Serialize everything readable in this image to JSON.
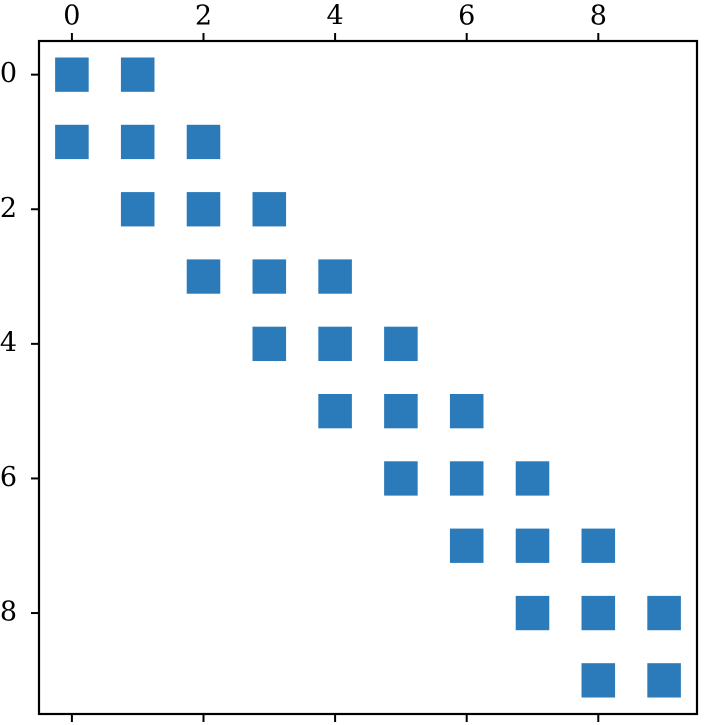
{
  "chart_data": {
    "type": "heatmap",
    "title": "",
    "xlabel": "",
    "ylabel": "",
    "n_rows": 10,
    "n_cols": 10,
    "xlim": [
      -0.5,
      9.5
    ],
    "ylim": [
      9.5,
      -0.5
    ],
    "x_ticks": [
      0,
      2,
      4,
      6,
      8
    ],
    "y_ticks": [
      0,
      2,
      4,
      6,
      8
    ],
    "x_tick_labels": [
      "0",
      "2",
      "4",
      "6",
      "8"
    ],
    "y_tick_labels": [
      "0",
      "2",
      "4",
      "6",
      "8"
    ],
    "x_axis_position": "top",
    "grid": false,
    "legend": "none",
    "marker_color": "#2b7bba",
    "nonzero_cells": [
      [
        0,
        0
      ],
      [
        0,
        1
      ],
      [
        1,
        0
      ],
      [
        1,
        1
      ],
      [
        1,
        2
      ],
      [
        2,
        1
      ],
      [
        2,
        2
      ],
      [
        2,
        3
      ],
      [
        3,
        2
      ],
      [
        3,
        3
      ],
      [
        3,
        4
      ],
      [
        4,
        3
      ],
      [
        4,
        4
      ],
      [
        4,
        5
      ],
      [
        5,
        4
      ],
      [
        5,
        5
      ],
      [
        5,
        6
      ],
      [
        6,
        5
      ],
      [
        6,
        6
      ],
      [
        6,
        7
      ],
      [
        7,
        6
      ],
      [
        7,
        7
      ],
      [
        7,
        8
      ],
      [
        8,
        7
      ],
      [
        8,
        8
      ],
      [
        8,
        9
      ],
      [
        9,
        8
      ],
      [
        9,
        9
      ]
    ]
  }
}
